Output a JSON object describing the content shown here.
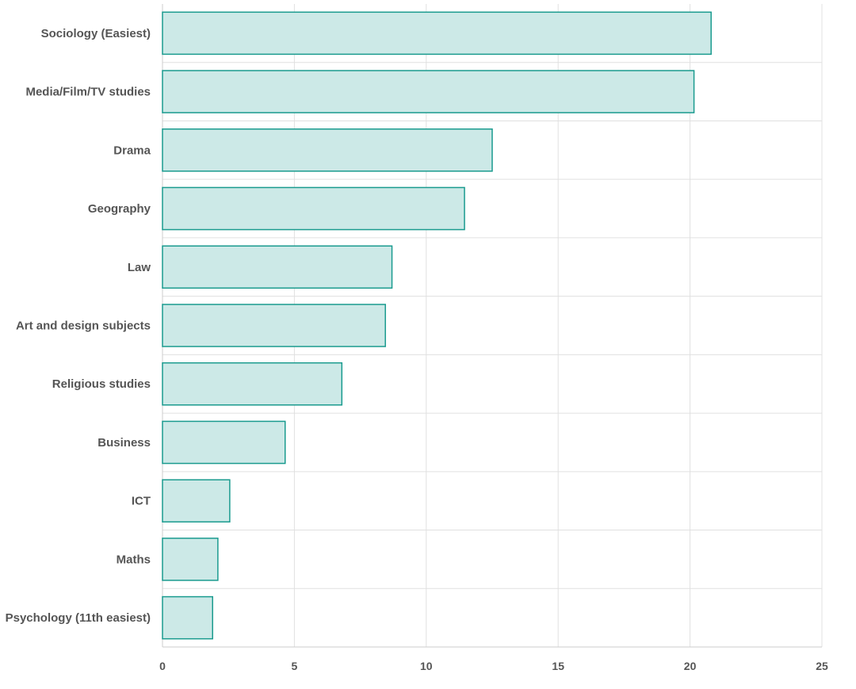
{
  "chart_data": {
    "type": "bar",
    "orientation": "horizontal",
    "categories": [
      "Sociology (Easiest)",
      "Media/Film/TV studies",
      "Drama",
      "Geography",
      "Law",
      "Art and design subjects",
      "Religious studies",
      "Business",
      "ICT",
      "Maths",
      "Psychology (11th easiest)"
    ],
    "values": [
      20.8,
      20.15,
      12.5,
      11.45,
      8.7,
      8.45,
      6.8,
      4.65,
      2.55,
      2.1,
      1.9
    ],
    "title": "",
    "xlabel": "",
    "ylabel": "",
    "xlim": [
      0,
      25
    ],
    "x_ticks": [
      "0",
      "5",
      "10",
      "15",
      "20",
      "25"
    ],
    "grid": true,
    "legend": "none",
    "colors": {
      "bar_fill": "#cce9e7",
      "bar_stroke": "#1a9b8f",
      "grid": "#e0e0e0",
      "label": "#555555"
    }
  }
}
